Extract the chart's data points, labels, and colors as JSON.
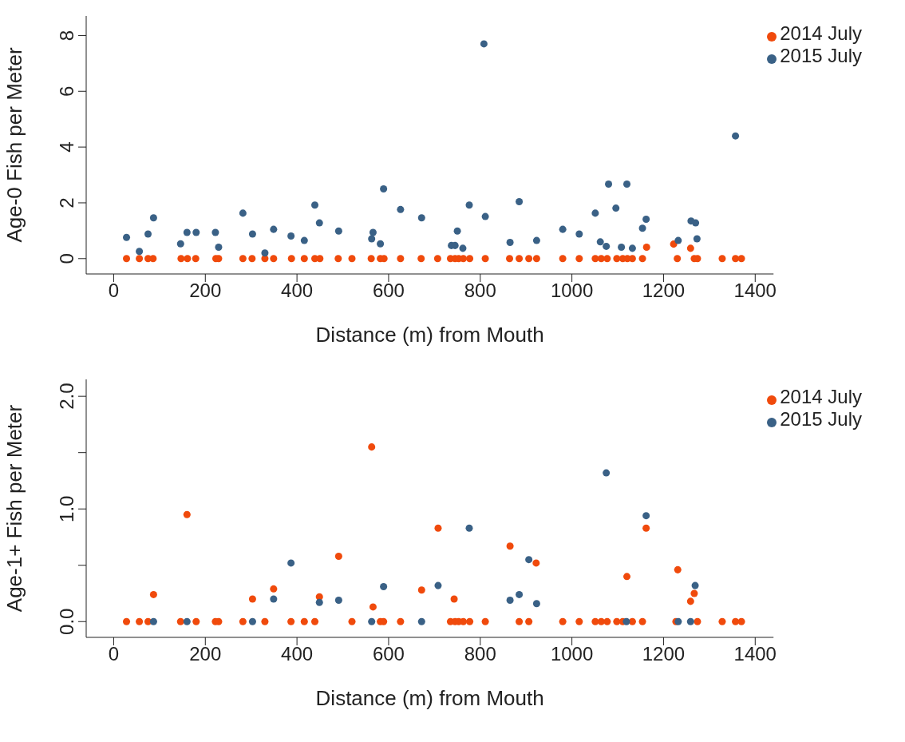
{
  "chart_data": [
    {
      "type": "scatter",
      "xlabel": "Distance (m) from Mouth",
      "ylabel": "Age-0 Fish per Meter",
      "xlim": [
        -60,
        1440
      ],
      "xticks": [
        0,
        200,
        400,
        600,
        800,
        1000,
        1200,
        1400
      ],
      "ylim": [
        -0.55,
        8.7
      ],
      "yticks": [
        0,
        2,
        4,
        6,
        8
      ],
      "grid": false,
      "legend": "top right",
      "marker": "circle",
      "series": [
        {
          "name": "2014 July",
          "color": "#f04a0c",
          "x": [
            28,
            56,
            75,
            86,
            147,
            161,
            179,
            223,
            229,
            282,
            302,
            330,
            349,
            388,
            416,
            439,
            450,
            490,
            520,
            562,
            582,
            590,
            626,
            671,
            707,
            735,
            745,
            753,
            763,
            777,
            811,
            864,
            885,
            906,
            923,
            980,
            1016,
            1051,
            1064,
            1077,
            1098,
            1111,
            1121,
            1132,
            1154,
            1163,
            1222,
            1230,
            1259,
            1267,
            1274,
            1328,
            1357,
            1370
          ],
          "values": [
            0,
            0,
            0,
            0,
            0,
            0,
            0,
            0,
            0,
            0,
            0,
            0,
            0,
            0,
            0,
            0,
            0,
            0,
            0,
            0,
            0,
            0,
            0,
            0,
            0,
            0,
            0,
            0,
            0,
            0,
            0,
            0,
            0,
            0,
            0,
            0,
            0,
            0,
            0,
            0,
            0,
            0,
            0,
            0,
            0,
            0.41,
            0.52,
            0,
            0.37,
            0,
            0,
            0,
            0,
            0
          ]
        },
        {
          "name": "2015 July",
          "color": "#3a6186",
          "x": [
            28,
            56,
            75,
            87,
            146,
            160,
            180,
            222,
            229,
            282,
            303,
            330,
            349,
            387,
            416,
            439,
            449,
            491,
            563,
            566,
            582,
            589,
            626,
            672,
            737,
            745,
            750,
            762,
            776,
            808,
            811,
            865,
            885,
            923,
            980,
            1016,
            1051,
            1062,
            1075,
            1080,
            1096,
            1108,
            1120,
            1132,
            1154,
            1162,
            1232,
            1260,
            1270,
            1273,
            1357
          ],
          "values": [
            0.76,
            0.26,
            0.88,
            1.46,
            0.53,
            0.94,
            0.94,
            0.94,
            0.41,
            1.63,
            0.88,
            0.2,
            1.05,
            0.81,
            0.65,
            1.92,
            1.28,
            0.99,
            0.71,
            0.94,
            0.53,
            2.5,
            1.76,
            1.46,
            0.47,
            0.47,
            0.99,
            0.37,
            1.92,
            7.7,
            1.51,
            0.58,
            2.04,
            0.65,
            1.05,
            0.88,
            1.63,
            0.6,
            0.44,
            2.67,
            1.81,
            0.41,
            2.67,
            0.37,
            1.09,
            1.41,
            0.65,
            1.35,
            1.28,
            0.71,
            4.4
          ]
        }
      ]
    },
    {
      "type": "scatter",
      "xlabel": "Distance (m) from Mouth",
      "ylabel": "Age-1+ Fish per Meter",
      "xlim": [
        -60,
        1440
      ],
      "xticks": [
        0,
        200,
        400,
        600,
        800,
        1000,
        1200,
        1400
      ],
      "ylim": [
        -0.14,
        2.15
      ],
      "yticks": [
        {
          "value": 0,
          "label": "0.0"
        },
        {
          "value": 0.5,
          "label": null
        },
        {
          "value": 1,
          "label": "1.0"
        },
        {
          "value": 1.5,
          "label": null
        },
        {
          "value": 2,
          "label": "2.0"
        }
      ],
      "grid": false,
      "legend": "top right",
      "marker": "circle",
      "series": [
        {
          "name": "2014 July",
          "color": "#f04a0c",
          "x": [
            28,
            56,
            75,
            87,
            146,
            160,
            180,
            222,
            229,
            282,
            303,
            330,
            349,
            387,
            416,
            439,
            449,
            491,
            520,
            563,
            566,
            582,
            589,
            626,
            672,
            708,
            735,
            743,
            745,
            753,
            763,
            777,
            811,
            865,
            885,
            906,
            922,
            980,
            1016,
            1051,
            1064,
            1077,
            1098,
            1111,
            1120,
            1132,
            1154,
            1162,
            1227,
            1231,
            1259,
            1267,
            1274,
            1328,
            1357,
            1370
          ],
          "values": [
            0,
            0,
            0,
            0.24,
            0,
            0.95,
            0,
            0,
            0,
            0,
            0.2,
            0,
            0.29,
            0,
            0,
            0,
            0.22,
            0.58,
            0,
            1.55,
            0.13,
            0,
            0,
            0,
            0.28,
            0.83,
            0,
            0.2,
            0,
            0,
            0,
            0,
            0,
            0.67,
            0,
            0,
            0.52,
            0,
            0,
            0,
            0,
            0,
            0,
            0,
            0.4,
            0,
            0,
            0.83,
            0,
            0.46,
            0.18,
            0.25,
            0,
            0,
            0,
            0
          ]
        },
        {
          "name": "2015 July",
          "color": "#3a6186",
          "x": [
            87,
            160,
            303,
            349,
            387,
            449,
            491,
            563,
            589,
            672,
            708,
            776,
            865,
            885,
            906,
            923,
            1075,
            1119,
            1162,
            1232,
            1259,
            1269
          ],
          "values": [
            0,
            0,
            0,
            0.2,
            0.52,
            0.17,
            0.19,
            0,
            0.31,
            0,
            0.32,
            0.83,
            0.19,
            0.24,
            0.55,
            0.16,
            1.32,
            0,
            0.94,
            0,
            0,
            0.32
          ]
        }
      ]
    }
  ]
}
